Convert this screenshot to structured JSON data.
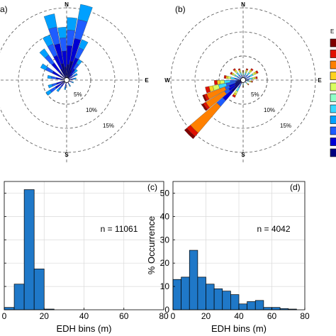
{
  "panels": {
    "a": {
      "tag": "a)"
    },
    "b": {
      "tag": "(b)"
    },
    "c": {
      "tag": "(c)",
      "n_text": "n = 11061"
    },
    "d": {
      "tag": "(d)",
      "n_text": "n = 4042"
    }
  },
  "roses": {
    "compass": {
      "n": "N",
      "e": "E",
      "s": "S",
      "w": "W"
    },
    "rings": [
      "5%",
      "10%",
      "15%"
    ],
    "legend_header": "E"
  },
  "chart_data": [
    {
      "type": "rose",
      "panel": "a",
      "ring_values": [
        5,
        10,
        15
      ],
      "unit": "%",
      "wedges": [
        {
          "dir": 345,
          "pct": 14
        },
        {
          "dir": 355,
          "pct": 11
        },
        {
          "dir": 5,
          "pct": 13
        },
        {
          "dir": 15,
          "pct": 16
        },
        {
          "dir": 25,
          "pct": 9
        },
        {
          "dir": 35,
          "pct": 5
        },
        {
          "dir": 45,
          "pct": 3
        },
        {
          "dir": 60,
          "pct": 2.5
        },
        {
          "dir": 80,
          "pct": 2
        },
        {
          "dir": 110,
          "pct": 1.5
        },
        {
          "dir": 150,
          "pct": 1.5
        },
        {
          "dir": 190,
          "pct": 2
        },
        {
          "dir": 220,
          "pct": 3
        },
        {
          "dir": 235,
          "pct": 5
        },
        {
          "dir": 250,
          "pct": 4
        },
        {
          "dir": 280,
          "pct": 4
        },
        {
          "dir": 300,
          "pct": 6
        },
        {
          "dir": 320,
          "pct": 8
        },
        {
          "dir": 335,
          "pct": 10
        }
      ]
    },
    {
      "type": "rose",
      "panel": "b",
      "ring_values": [
        5,
        10,
        15
      ],
      "unit": "%",
      "wedges": [
        {
          "dir": 225,
          "pct": 16
        },
        {
          "dir": 235,
          "pct": 10
        },
        {
          "dir": 245,
          "pct": 9
        },
        {
          "dir": 255,
          "pct": 8
        },
        {
          "dir": 265,
          "pct": 6
        },
        {
          "dir": 280,
          "pct": 4
        },
        {
          "dir": 300,
          "pct": 3
        },
        {
          "dir": 320,
          "pct": 3
        },
        {
          "dir": 340,
          "pct": 2.5
        },
        {
          "dir": 0,
          "pct": 2
        },
        {
          "dir": 20,
          "pct": 2.5
        },
        {
          "dir": 40,
          "pct": 3
        },
        {
          "dir": 60,
          "pct": 3.5
        },
        {
          "dir": 80,
          "pct": 3
        },
        {
          "dir": 100,
          "pct": 2
        },
        {
          "dir": 130,
          "pct": 1.5
        },
        {
          "dir": 180,
          "pct": 1.5
        },
        {
          "dir": 210,
          "pct": 4
        }
      ]
    },
    {
      "type": "bar",
      "panel": "c",
      "xlabel": "EDH bins (m)",
      "ylabel": "",
      "xlim": [
        0,
        80
      ],
      "xticks": [
        0,
        20,
        40,
        60,
        80
      ],
      "ylim": [
        0,
        55
      ],
      "bin_width": 5,
      "bin_starts": [
        0,
        5,
        10,
        15,
        20
      ],
      "values": [
        1,
        11,
        51.5,
        17.5,
        0.3
      ]
    },
    {
      "type": "bar",
      "panel": "d",
      "xlabel": "EDH bins (m)",
      "ylabel": "% Occurrence",
      "xlim": [
        0,
        80
      ],
      "xticks": [
        0,
        20,
        40,
        60,
        80
      ],
      "ylim": [
        0,
        55
      ],
      "yticks": [
        0,
        10,
        20,
        30,
        40,
        50
      ],
      "bin_width": 5,
      "bin_starts": [
        0,
        5,
        10,
        15,
        20,
        25,
        30,
        35,
        40,
        45,
        50,
        55,
        60,
        65,
        70
      ],
      "values": [
        13,
        14,
        25.5,
        14,
        11,
        9,
        8,
        6.5,
        2.5,
        3.5,
        4,
        1,
        1,
        0.5,
        0.3
      ]
    }
  ],
  "colors": {
    "bar_fill": "#1f78c8",
    "grid": "#d9d9d9",
    "rose_palette": [
      "#00007f",
      "#0000d4",
      "#1e5cff",
      "#00a0ff",
      "#38d8ff",
      "#8fffc8",
      "#d8ff60",
      "#ffd21e",
      "#ff8000",
      "#e01000",
      "#800000"
    ]
  }
}
